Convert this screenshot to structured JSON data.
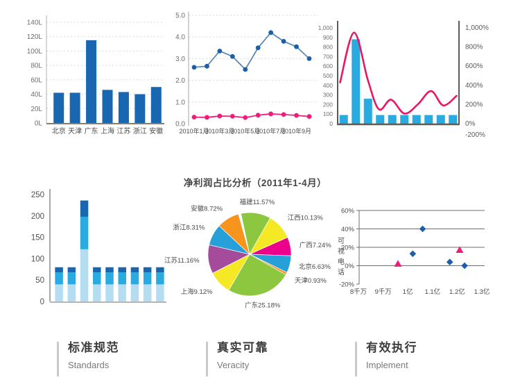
{
  "chart_data": [
    {
      "id": "province-bar",
      "type": "bar",
      "categories": [
        "北京",
        "天津",
        "广东",
        "上海",
        "江苏",
        "浙江",
        "安徽"
      ],
      "values": [
        42,
        42,
        115,
        46,
        43,
        40,
        50
      ],
      "ylim": [
        0,
        140
      ],
      "ytick_labels": [
        "0L",
        "20L",
        "40L",
        "60L",
        "80L",
        "100L",
        "120L",
        "140L"
      ],
      "bar_color": "#1a67b1",
      "grid": "dashed"
    },
    {
      "id": "monthly-line",
      "type": "line",
      "x_tick_labels": [
        "2010年1月",
        "2010年3月",
        "2010年5月",
        "2010年7月",
        "2010年9月"
      ],
      "ylim": [
        0,
        5
      ],
      "ytick_labels": [
        "0.0",
        "1.0",
        "2.0",
        "3.0",
        "4.0",
        "5.0"
      ],
      "grid": "dashed",
      "series": [
        {
          "name": "blue",
          "line_color": "#5b8ab8",
          "marker_color": "#1b5fa8",
          "values": [
            2.6,
            2.65,
            3.35,
            3.1,
            2.5,
            3.5,
            4.2,
            3.8,
            3.55,
            3.0
          ]
        },
        {
          "name": "pink",
          "line_color": "#ed1e79",
          "marker_color": "#ed1e79",
          "values": [
            0.3,
            0.29,
            0.35,
            0.34,
            0.28,
            0.39,
            0.45,
            0.42,
            0.38,
            0.33
          ]
        }
      ]
    },
    {
      "id": "bar-line-combo",
      "type": "bar+line",
      "bar_values": [
        90,
        880,
        260,
        90,
        90,
        90,
        90,
        90,
        90,
        90
      ],
      "bar_color": "#29abe2",
      "left_ylim": [
        0,
        1000
      ],
      "left_ytick_labels": [
        "1,000",
        "900",
        "800",
        "700",
        "600",
        "500",
        "400",
        "300",
        "200",
        "100",
        "0"
      ],
      "right_ytick_labels": [
        "1,000%",
        "800%",
        "600%",
        "400%",
        "200%",
        "0%",
        "-200%"
      ],
      "line_color": "#ec1562",
      "line_points_pct": [
        [
          0.02,
          430
        ],
        [
          0.135,
          950
        ],
        [
          0.25,
          450
        ],
        [
          0.34,
          150
        ],
        [
          0.44,
          250
        ],
        [
          0.55,
          105
        ],
        [
          0.66,
          200
        ],
        [
          0.77,
          340
        ],
        [
          0.87,
          190
        ],
        [
          0.98,
          290
        ]
      ]
    },
    {
      "id": "stacked-bar",
      "type": "bar",
      "stacked": true,
      "ylim": [
        0,
        250
      ],
      "ytick_labels": [
        "0",
        "50",
        "100",
        "150",
        "200",
        "250"
      ],
      "series": [
        {
          "name": "bottom",
          "color": "#b5ddf2",
          "values": [
            40,
            40,
            122,
            40,
            40,
            40,
            40,
            40,
            40
          ]
        },
        {
          "name": "middle",
          "color": "#29abe2",
          "values": [
            28,
            28,
            76,
            28,
            28,
            28,
            28,
            28,
            28
          ]
        },
        {
          "name": "top",
          "color": "#1a67b1",
          "values": [
            12,
            12,
            38,
            12,
            12,
            12,
            12,
            12,
            12
          ]
        }
      ]
    },
    {
      "id": "net-profit-pie",
      "type": "pie",
      "title": "净利润占比分析（2011年1-4月）",
      "start_angle_deg": -12,
      "slices": [
        {
          "label": "福建",
          "pct": 11.57,
          "color": "#8dc63f"
        },
        {
          "label": "江西",
          "pct": 10.13,
          "color": "#f5e926"
        },
        {
          "label": "广西",
          "pct": 7.24,
          "color": "#ec008c"
        },
        {
          "label": "北京",
          "pct": 6.63,
          "color": "#279fd9"
        },
        {
          "label": "天津",
          "pct": 0.93,
          "color": "#f7941e"
        },
        {
          "label": "广东",
          "pct": 25.18,
          "color": "#8dc63f"
        },
        {
          "label": "上海",
          "pct": 9.12,
          "color": "#f5e926"
        },
        {
          "label": "江苏",
          "pct": 11.16,
          "color": "#a54b9c"
        },
        {
          "label": "浙江",
          "pct": 8.31,
          "color": "#279fd9"
        },
        {
          "label": "安徽",
          "pct": 8.72,
          "color": "#f7941e"
        }
      ]
    },
    {
      "id": "scatter",
      "type": "scatter",
      "y_axis_label": "可视电话",
      "ylim": [
        -20,
        60
      ],
      "ytick_labels": [
        "-20%",
        "0%",
        "20%",
        "40%",
        "60%"
      ],
      "xlim": [
        0.8,
        1.3
      ],
      "xtick_labels": [
        "8千万",
        "9千万",
        "1亿",
        "1.1亿",
        "1.2亿",
        "1.3亿"
      ],
      "series": [
        {
          "name": "diamond-series",
          "marker": "diamond",
          "color": "#1b5fa8",
          "points": [
            [
              1.02,
              13
            ],
            [
              1.06,
              40
            ],
            [
              1.17,
              4
            ],
            [
              1.23,
              0
            ]
          ]
        },
        {
          "name": "triangle-series",
          "marker": "triangle",
          "color": "#ed1e79",
          "points": [
            [
              0.96,
              2
            ],
            [
              1.21,
              17
            ]
          ]
        }
      ]
    }
  ],
  "footer": {
    "items": [
      {
        "zh": "标准规范",
        "en": "Standards"
      },
      {
        "zh": "真实可靠",
        "en": "Veracity"
      },
      {
        "zh": "有效执行",
        "en": "Implement"
      }
    ]
  }
}
